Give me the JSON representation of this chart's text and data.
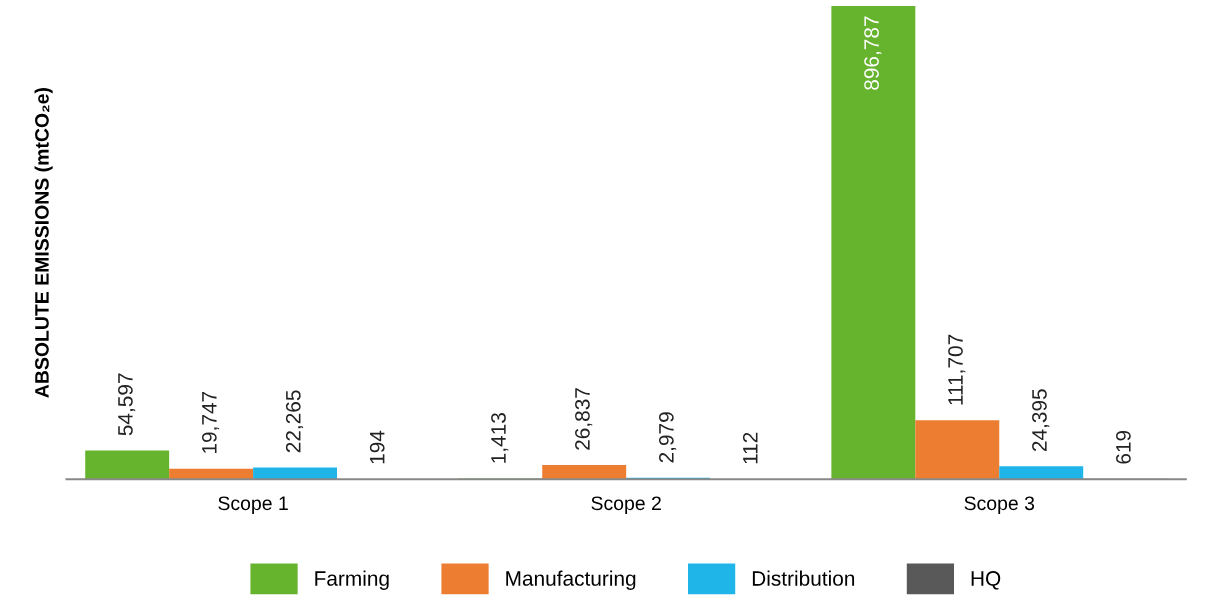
{
  "chart_data": {
    "type": "bar",
    "ylabel": "ABSOLUTE EMISSIONS (mtCO₂e)",
    "categories": [
      "Scope 1",
      "Scope 2",
      "Scope 3"
    ],
    "series": [
      {
        "name": "Farming",
        "color": "#66b32e",
        "values": [
          54597,
          1413,
          896787
        ],
        "value_labels": [
          "54,597",
          "1,413",
          "896,787"
        ]
      },
      {
        "name": "Manufacturing",
        "color": "#ed7d31",
        "values": [
          19747,
          26837,
          111707
        ],
        "value_labels": [
          "19,747",
          "26,837",
          "111,707"
        ]
      },
      {
        "name": "Distribution",
        "color": "#1fb5e8",
        "values": [
          22265,
          2979,
          24395
        ],
        "value_labels": [
          "22,265",
          "2,979",
          "24,395"
        ]
      },
      {
        "name": "HQ",
        "color": "#595959",
        "values": [
          194,
          112,
          619
        ],
        "value_labels": [
          "194",
          "112",
          "619"
        ]
      }
    ],
    "grid": false,
    "legend": "bottom"
  }
}
